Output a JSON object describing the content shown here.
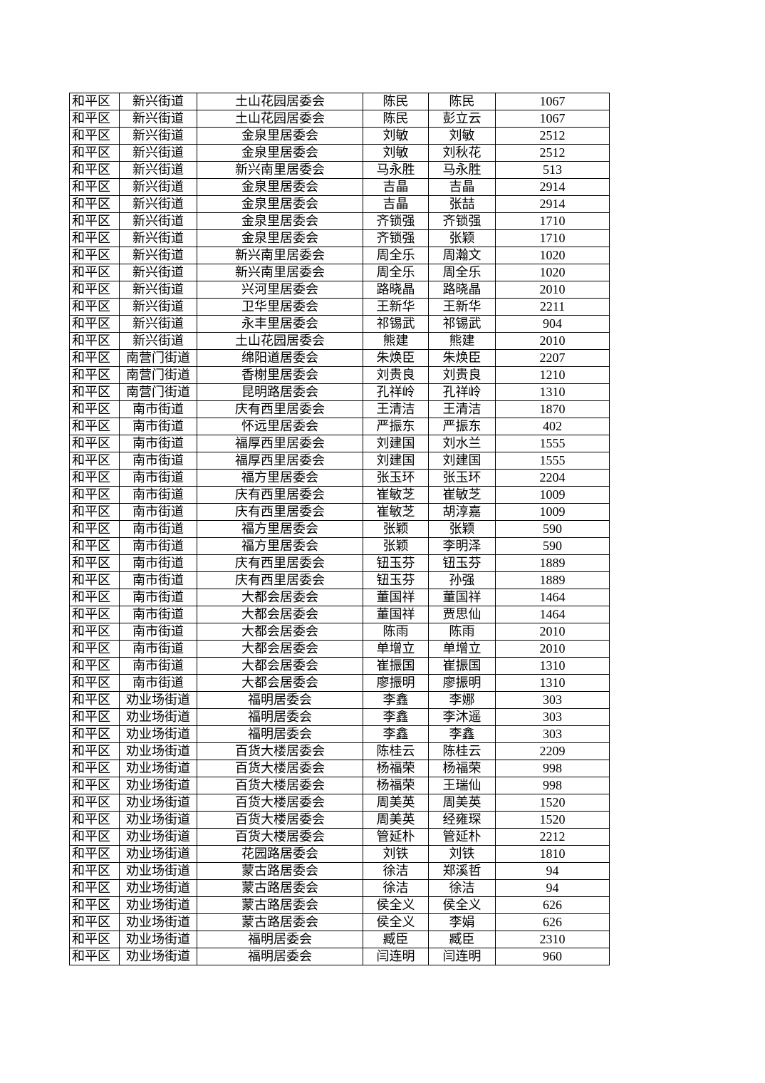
{
  "table": {
    "rows": [
      [
        "和平区",
        "新兴街道",
        "土山花园居委会",
        "陈民",
        "陈民",
        "1067"
      ],
      [
        "和平区",
        "新兴街道",
        "土山花园居委会",
        "陈民",
        "彭立云",
        "1067"
      ],
      [
        "和平区",
        "新兴街道",
        "金泉里居委会",
        "刘敏",
        "刘敏",
        "2512"
      ],
      [
        "和平区",
        "新兴街道",
        "金泉里居委会",
        "刘敏",
        "刘秋花",
        "2512"
      ],
      [
        "和平区",
        "新兴街道",
        "新兴南里居委会",
        "马永胜",
        "马永胜",
        "513"
      ],
      [
        "和平区",
        "新兴街道",
        "金泉里居委会",
        "吉晶",
        "吉晶",
        "2914"
      ],
      [
        "和平区",
        "新兴街道",
        "金泉里居委会",
        "吉晶",
        "张喆",
        "2914"
      ],
      [
        "和平区",
        "新兴街道",
        "金泉里居委会",
        "齐锁强",
        "齐锁强",
        "1710"
      ],
      [
        "和平区",
        "新兴街道",
        "金泉里居委会",
        "齐锁强",
        "张颖",
        "1710"
      ],
      [
        "和平区",
        "新兴街道",
        "新兴南里居委会",
        "周全乐",
        "周瀚文",
        "1020"
      ],
      [
        "和平区",
        "新兴街道",
        "新兴南里居委会",
        "周全乐",
        "周全乐",
        "1020"
      ],
      [
        "和平区",
        "新兴街道",
        "兴河里居委会",
        "路晓晶",
        "路晓晶",
        "2010"
      ],
      [
        "和平区",
        "新兴街道",
        "卫华里居委会",
        "王新华",
        "王新华",
        "2211"
      ],
      [
        "和平区",
        "新兴街道",
        "永丰里居委会",
        "祁锡武",
        "祁锡武",
        "904"
      ],
      [
        "和平区",
        "新兴街道",
        "土山花园居委会",
        "熊建",
        "熊建",
        "2010"
      ],
      [
        "和平区",
        "南营门街道",
        "绵阳道居委会",
        "朱焕臣",
        "朱焕臣",
        "2207"
      ],
      [
        "和平区",
        "南营门街道",
        "香榭里居委会",
        "刘贵良",
        "刘贵良",
        "1210"
      ],
      [
        "和平区",
        "南营门街道",
        "昆明路居委会",
        "孔祥岭",
        "孔祥岭",
        "1310"
      ],
      [
        "和平区",
        "南市街道",
        "庆有西里居委会",
        "王清洁",
        "王清洁",
        "1870"
      ],
      [
        "和平区",
        "南市街道",
        "怀远里居委会",
        "严振东",
        "严振东",
        "402"
      ],
      [
        "和平区",
        "南市街道",
        "福厚西里居委会",
        "刘建国",
        "刘水兰",
        "1555"
      ],
      [
        "和平区",
        "南市街道",
        "福厚西里居委会",
        "刘建国",
        "刘建国",
        "1555"
      ],
      [
        "和平区",
        "南市街道",
        "福方里居委会",
        "张玉环",
        "张玉环",
        "2204"
      ],
      [
        "和平区",
        "南市街道",
        "庆有西里居委会",
        "崔敏芝",
        "崔敏芝",
        "1009"
      ],
      [
        "和平区",
        "南市街道",
        "庆有西里居委会",
        "崔敏芝",
        "胡淳嘉",
        "1009"
      ],
      [
        "和平区",
        "南市街道",
        "福方里居委会",
        "张颖",
        "张颖",
        "590"
      ],
      [
        "和平区",
        "南市街道",
        "福方里居委会",
        "张颖",
        "李明泽",
        "590"
      ],
      [
        "和平区",
        "南市街道",
        "庆有西里居委会",
        "钮玉芬",
        "钮玉芬",
        "1889"
      ],
      [
        "和平区",
        "南市街道",
        "庆有西里居委会",
        "钮玉芬",
        "孙强",
        "1889"
      ],
      [
        "和平区",
        "南市街道",
        "大都会居委会",
        "董国祥",
        "董国祥",
        "1464"
      ],
      [
        "和平区",
        "南市街道",
        "大都会居委会",
        "董国祥",
        "贾思仙",
        "1464"
      ],
      [
        "和平区",
        "南市街道",
        "大都会居委会",
        "陈雨",
        "陈雨",
        "2010"
      ],
      [
        "和平区",
        "南市街道",
        "大都会居委会",
        "单增立",
        "单增立",
        "2010"
      ],
      [
        "和平区",
        "南市街道",
        "大都会居委会",
        "崔振国",
        "崔振国",
        "1310"
      ],
      [
        "和平区",
        "南市街道",
        "大都会居委会",
        "廖振明",
        "廖振明",
        "1310"
      ],
      [
        "和平区",
        "劝业场街道",
        "福明居委会",
        "李鑫",
        "李娜",
        "303"
      ],
      [
        "和平区",
        "劝业场街道",
        "福明居委会",
        "李鑫",
        "李沐遥",
        "303"
      ],
      [
        "和平区",
        "劝业场街道",
        "福明居委会",
        "李鑫",
        "李鑫",
        "303"
      ],
      [
        "和平区",
        "劝业场街道",
        "百货大楼居委会",
        "陈桂云",
        "陈桂云",
        "2209"
      ],
      [
        "和平区",
        "劝业场街道",
        "百货大楼居委会",
        "杨福荣",
        "杨福荣",
        "998"
      ],
      [
        "和平区",
        "劝业场街道",
        "百货大楼居委会",
        "杨福荣",
        "王瑞仙",
        "998"
      ],
      [
        "和平区",
        "劝业场街道",
        "百货大楼居委会",
        "周美英",
        "周美英",
        "1520"
      ],
      [
        "和平区",
        "劝业场街道",
        "百货大楼居委会",
        "周美英",
        "经雍琛",
        "1520"
      ],
      [
        "和平区",
        "劝业场街道",
        "百货大楼居委会",
        "管延朴",
        "管延朴",
        "2212"
      ],
      [
        "和平区",
        "劝业场街道",
        "花园路居委会",
        "刘铁",
        "刘铁",
        "1810"
      ],
      [
        "和平区",
        "劝业场街道",
        "蒙古路居委会",
        "徐洁",
        "郑溪哲",
        "94"
      ],
      [
        "和平区",
        "劝业场街道",
        "蒙古路居委会",
        "徐洁",
        "徐洁",
        "94"
      ],
      [
        "和平区",
        "劝业场街道",
        "蒙古路居委会",
        "侯全义",
        "侯全义",
        "626"
      ],
      [
        "和平区",
        "劝业场街道",
        "蒙古路居委会",
        "侯全义",
        "李娟",
        "626"
      ],
      [
        "和平区",
        "劝业场街道",
        "福明居委会",
        "臧臣",
        "臧臣",
        "2310"
      ],
      [
        "和平区",
        "劝业场街道",
        "福明居委会",
        "闫连明",
        "闫连明",
        "960"
      ]
    ]
  }
}
